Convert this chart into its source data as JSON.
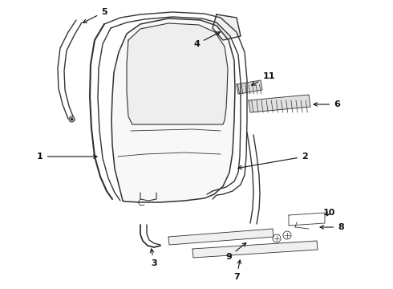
{
  "bg_color": "#ffffff",
  "line_color": "#333333",
  "fig_width": 4.9,
  "fig_height": 3.6,
  "dpi": 100
}
